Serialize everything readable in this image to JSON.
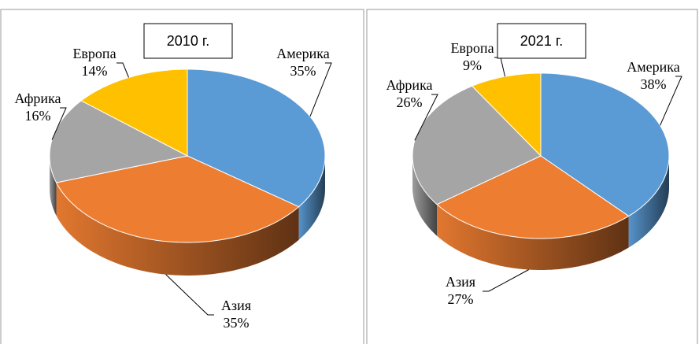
{
  "chart_data": [
    {
      "type": "pie",
      "title": "2010 г.",
      "categories": [
        "Америка",
        "Азия",
        "Африка",
        "Европа"
      ],
      "values": [
        35,
        35,
        16,
        14
      ],
      "value_labels": [
        "35%",
        "35%",
        "16%",
        "14%"
      ],
      "colors": [
        "#5b9bd5",
        "#ed7d31",
        "#a5a5a5",
        "#ffc000"
      ]
    },
    {
      "type": "pie",
      "title": "2021 г.",
      "categories": [
        "Америка",
        "Азия",
        "Африка",
        "Европа"
      ],
      "values": [
        38,
        27,
        26,
        9
      ],
      "value_labels": [
        "38%",
        "27%",
        "26%",
        "9%"
      ],
      "colors": [
        "#5b9bd5",
        "#ed7d31",
        "#a5a5a5",
        "#ffc000"
      ]
    }
  ]
}
